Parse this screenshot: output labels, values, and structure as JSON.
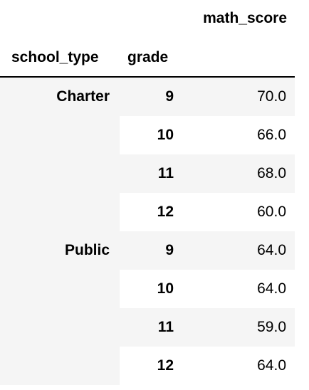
{
  "table": {
    "value_column": "math_score",
    "index_columns": [
      "school_type",
      "grade"
    ],
    "rows": [
      {
        "school_type": "Charter",
        "grade": "9",
        "math_score": "70.0"
      },
      {
        "school_type": "",
        "grade": "10",
        "math_score": "66.0"
      },
      {
        "school_type": "",
        "grade": "11",
        "math_score": "68.0"
      },
      {
        "school_type": "",
        "grade": "12",
        "math_score": "60.0"
      },
      {
        "school_type": "Public",
        "grade": "9",
        "math_score": "64.0"
      },
      {
        "school_type": "",
        "grade": "10",
        "math_score": "64.0"
      },
      {
        "school_type": "",
        "grade": "11",
        "math_score": "59.0"
      },
      {
        "school_type": "",
        "grade": "12",
        "math_score": "64.0"
      }
    ]
  }
}
